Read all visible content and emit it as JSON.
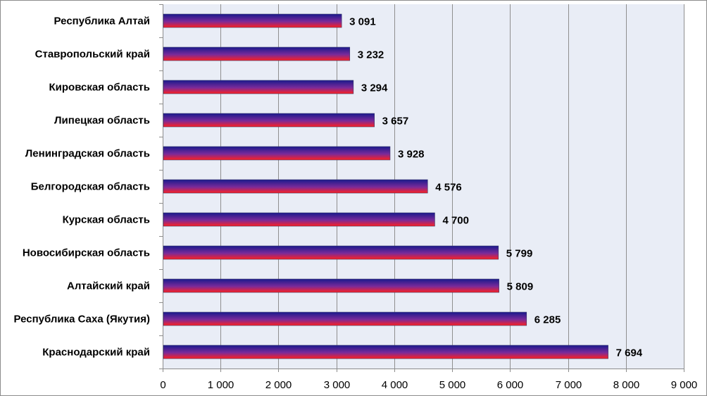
{
  "chart_data": {
    "type": "bar",
    "orientation": "horizontal",
    "categories": [
      "Республика Алтай",
      "Ставропольский край",
      "Кировская область",
      "Липецкая область",
      "Ленинградская область",
      "Белгородская область",
      "Курская область",
      "Новосибирская область",
      "Алтайский край",
      "Республика Саха (Якутия)",
      "Краснодарский край"
    ],
    "values": [
      3091,
      3232,
      3294,
      3657,
      3928,
      4576,
      4700,
      5799,
      5809,
      6285,
      7694
    ],
    "value_labels": [
      "3 091",
      "3 232",
      "3 294",
      "3 657",
      "3 928",
      "4 576",
      "4 700",
      "5 799",
      "5 809",
      "6 285",
      "7 694"
    ],
    "xlim": [
      0,
      9000
    ],
    "x_ticks": [
      0,
      1000,
      2000,
      3000,
      4000,
      5000,
      6000,
      7000,
      8000,
      9000
    ],
    "x_tick_labels": [
      "0",
      "1 000",
      "2 000",
      "3 000",
      "4 000",
      "5 000",
      "6 000",
      "7 000",
      "8 000",
      "9 000"
    ],
    "grid": "vertical",
    "legend": "none",
    "title": "",
    "xlabel": "",
    "ylabel": ""
  },
  "colors": {
    "plot_background": "#e9edf6",
    "gridline": "#8f8f8f",
    "axis": "#8c8c8c",
    "bar_top": "#1a1a8c",
    "bar_mid": "#7a2a9a",
    "bar_bottom": "#ff2020"
  }
}
